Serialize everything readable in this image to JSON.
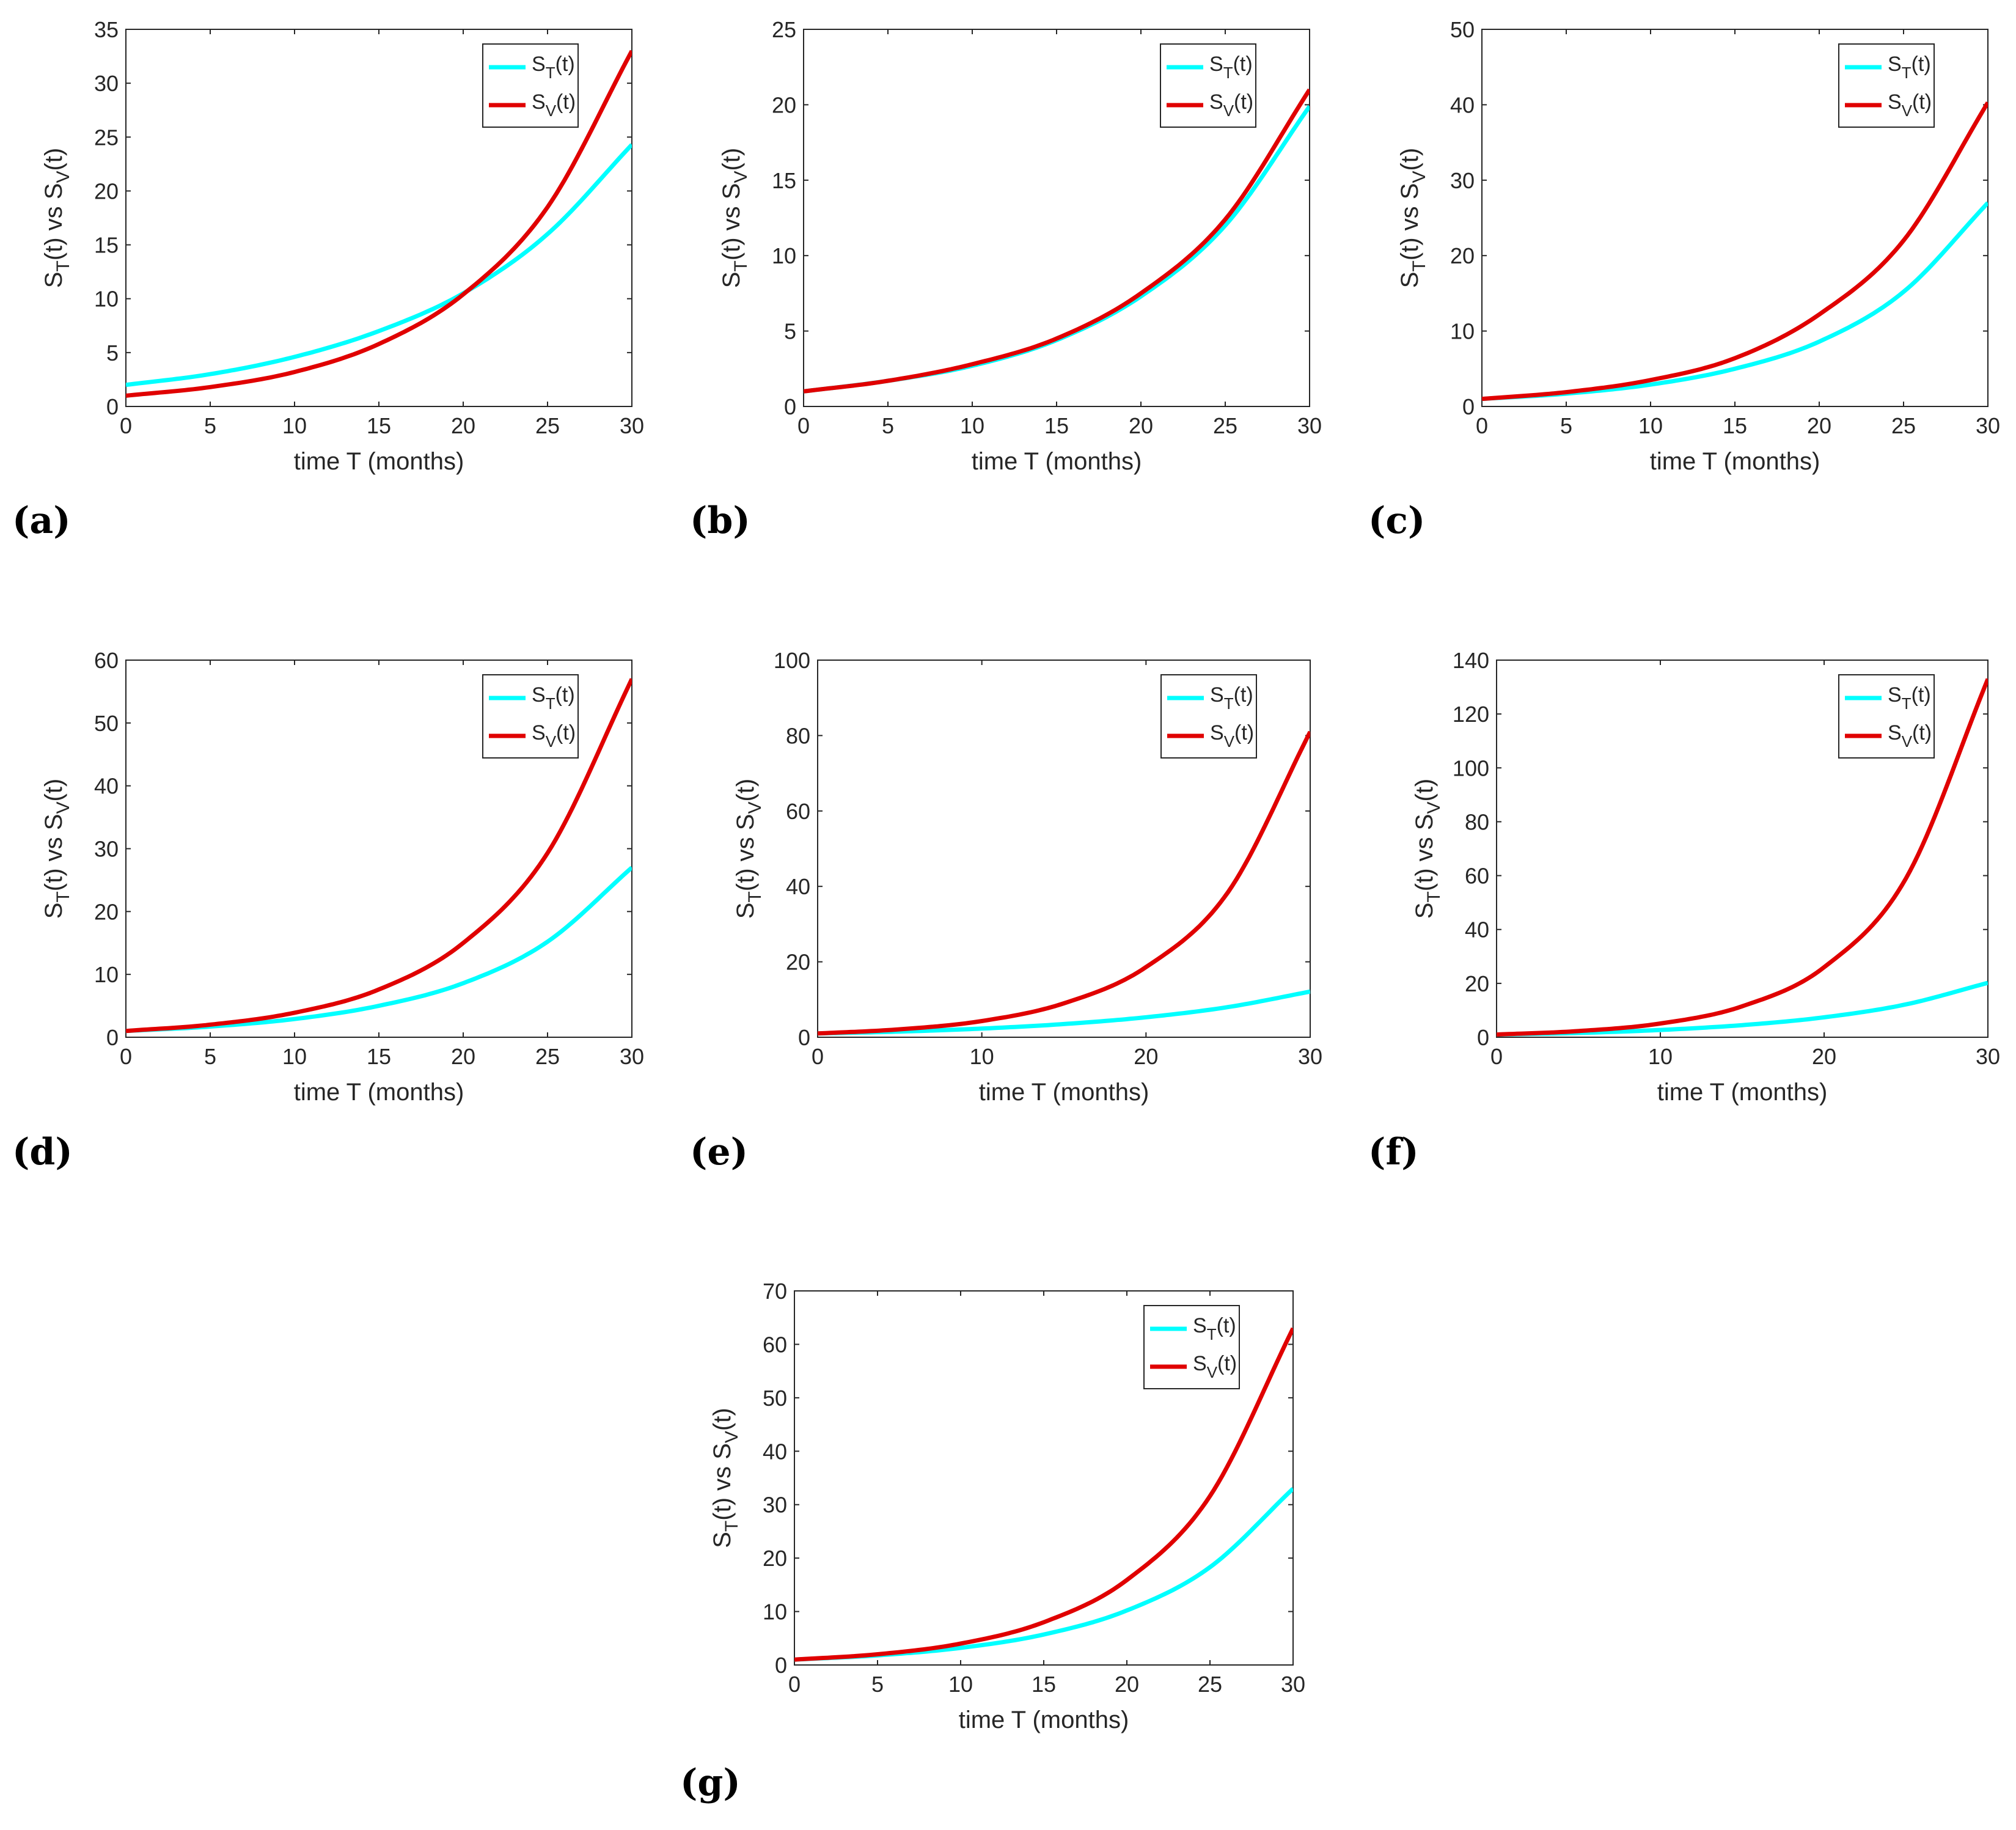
{
  "colors": {
    "cyan": "#00FFFF",
    "red": "#E00000",
    "axis": "#262626",
    "legend_box": "#262626"
  },
  "legend": {
    "s_t": {
      "main": "S",
      "sub": "T",
      "tail": "(t)"
    },
    "s_v": {
      "main": "S",
      "sub": "V",
      "tail": "(t)"
    }
  },
  "ylabel": {
    "a": "S",
    "b": "T",
    "c": "(t) vs S",
    "d": "V",
    "e": "(t)"
  },
  "xlabel": "time T (months)",
  "chart_data": [
    {
      "panel": "(a)",
      "type": "line",
      "legend_position": "top-right",
      "grid": false,
      "xlim": [
        0,
        30
      ],
      "ylim": [
        0,
        35
      ],
      "xticks": [
        0,
        5,
        10,
        15,
        20,
        25,
        30
      ],
      "yticks": [
        0,
        5,
        10,
        15,
        20,
        25,
        30,
        35
      ],
      "x": [
        0,
        5,
        10,
        15,
        20,
        25,
        30
      ],
      "series": [
        {
          "key": "s_t",
          "color": "cyan",
          "values": [
            2.0,
            3.0,
            4.6,
            7.0,
            10.5,
            16.0,
            24.3
          ]
        },
        {
          "key": "s_v",
          "color": "red",
          "values": [
            1.0,
            1.8,
            3.2,
            5.8,
            10.4,
            18.5,
            33.0
          ]
        }
      ]
    },
    {
      "panel": "(b)",
      "type": "line",
      "legend_position": "top-right",
      "grid": false,
      "xlim": [
        0,
        30
      ],
      "ylim": [
        0,
        25
      ],
      "xticks": [
        0,
        5,
        10,
        15,
        20,
        25,
        30
      ],
      "yticks": [
        0,
        5,
        10,
        15,
        20,
        25
      ],
      "x": [
        0,
        5,
        10,
        15,
        20,
        25,
        30
      ],
      "series": [
        {
          "key": "s_t",
          "color": "cyan",
          "values": [
            1.0,
            1.7,
            2.7,
            4.4,
            7.3,
            12.0,
            19.9
          ]
        },
        {
          "key": "s_v",
          "color": "red",
          "values": [
            1.0,
            1.7,
            2.8,
            4.5,
            7.5,
            12.4,
            21.0
          ]
        }
      ]
    },
    {
      "panel": "(c)",
      "type": "line",
      "legend_position": "top-right",
      "grid": false,
      "xlim": [
        0,
        30
      ],
      "ylim": [
        0,
        50
      ],
      "xticks": [
        0,
        5,
        10,
        15,
        20,
        25,
        30
      ],
      "yticks": [
        0,
        10,
        20,
        30,
        40,
        50
      ],
      "x": [
        0,
        5,
        10,
        15,
        20,
        25,
        30
      ],
      "series": [
        {
          "key": "s_t",
          "color": "cyan",
          "values": [
            1.0,
            1.7,
            2.9,
            5.0,
            8.6,
            15.2,
            27.0
          ]
        },
        {
          "key": "s_v",
          "color": "red",
          "values": [
            1.0,
            1.9,
            3.5,
            6.4,
            12.2,
            22.0,
            40.3
          ]
        }
      ]
    },
    {
      "panel": "(d)",
      "type": "line",
      "legend_position": "top-right",
      "grid": false,
      "xlim": [
        0,
        30
      ],
      "ylim": [
        0,
        60
      ],
      "xticks": [
        0,
        5,
        10,
        15,
        20,
        25,
        30
      ],
      "yticks": [
        0,
        10,
        20,
        30,
        40,
        50,
        60
      ],
      "x": [
        0,
        5,
        10,
        15,
        20,
        25,
        30
      ],
      "series": [
        {
          "key": "s_t",
          "color": "cyan",
          "values": [
            1.0,
            1.7,
            2.9,
            5.0,
            8.6,
            15.2,
            27.0
          ]
        },
        {
          "key": "s_v",
          "color": "red",
          "values": [
            1.0,
            2.0,
            3.9,
            7.6,
            15.0,
            29.3,
            57.0
          ]
        }
      ]
    },
    {
      "panel": "(e)",
      "type": "line",
      "legend_position": "top-right",
      "grid": false,
      "xlim": [
        0,
        30
      ],
      "ylim": [
        0,
        100
      ],
      "xticks": [
        0,
        10,
        20,
        30
      ],
      "yticks": [
        0,
        20,
        40,
        60,
        80,
        100
      ],
      "x": [
        0,
        5,
        10,
        15,
        20,
        25,
        30
      ],
      "series": [
        {
          "key": "s_t",
          "color": "cyan",
          "values": [
            1.0,
            1.5,
            2.3,
            3.5,
            5.3,
            8.0,
            12.1
          ]
        },
        {
          "key": "s_v",
          "color": "red",
          "values": [
            1.0,
            2.1,
            4.3,
            9.0,
            18.6,
            38.5,
            81.0
          ]
        }
      ]
    },
    {
      "panel": "(f)",
      "type": "line",
      "legend_position": "top-right",
      "grid": false,
      "xlim": [
        0,
        30
      ],
      "ylim": [
        0,
        140
      ],
      "xticks": [
        0,
        10,
        20,
        30
      ],
      "yticks": [
        0,
        20,
        40,
        60,
        80,
        100,
        120,
        140
      ],
      "x": [
        0,
        5,
        10,
        15,
        20,
        25,
        30
      ],
      "series": [
        {
          "key": "s_t",
          "color": "cyan",
          "values": [
            1.0,
            1.6,
            2.7,
            4.5,
            7.4,
            12.2,
            20.2
          ]
        },
        {
          "key": "s_v",
          "color": "red",
          "values": [
            1.0,
            2.3,
            5.1,
            11.5,
            26.0,
            59.0,
            133.0
          ]
        }
      ]
    },
    {
      "panel": "(g)",
      "type": "line",
      "legend_position": "top-right",
      "grid": false,
      "xlim": [
        0,
        30
      ],
      "ylim": [
        0,
        70
      ],
      "xticks": [
        0,
        5,
        10,
        15,
        20,
        25,
        30
      ],
      "yticks": [
        0,
        10,
        20,
        30,
        40,
        50,
        60,
        70
      ],
      "x": [
        0,
        5,
        10,
        15,
        20,
        25,
        30
      ],
      "series": [
        {
          "key": "s_t",
          "color": "cyan",
          "values": [
            1.0,
            1.8,
            3.2,
            5.7,
            10.2,
            18.3,
            33.0
          ]
        },
        {
          "key": "s_v",
          "color": "red",
          "values": [
            1.0,
            2.0,
            4.0,
            8.0,
            15.9,
            31.6,
            63.0
          ]
        }
      ]
    }
  ]
}
